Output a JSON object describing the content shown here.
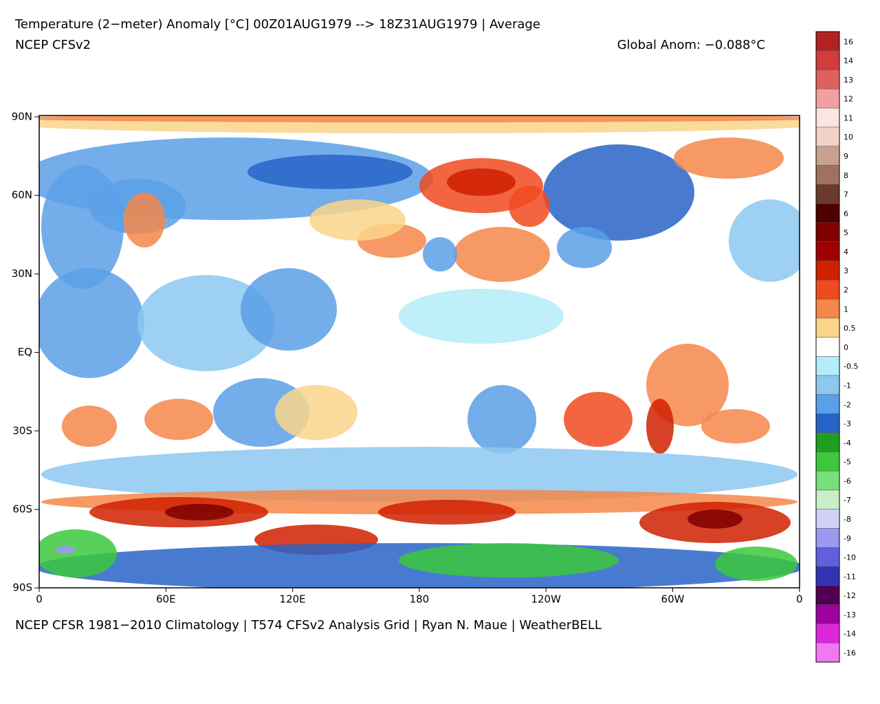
{
  "map": {
    "title": "Temperature (2−meter) Anomaly  [°C] 00Z01AUG1979 --> 18Z31AUG1979 | Average",
    "model": "NCEP CFSv2",
    "global_anomaly": "Global Anom: −0.088°C",
    "footer": "NCEP CFSR 1981−2010 Climatology | T574 CFSv2 Analysis Grid | Ryan N. Maue | WeatherBELL",
    "lat_labels": [
      "90N",
      "60N",
      "30N",
      "EQ",
      "30S",
      "60S",
      "90S"
    ],
    "lon_labels": [
      "0",
      "60E",
      "120E",
      "180",
      "120W",
      "60W",
      "0"
    ]
  },
  "colorbar": {
    "levels": [
      16,
      14,
      13,
      12,
      11,
      10,
      9,
      8,
      7,
      6,
      5,
      4,
      3,
      2,
      1,
      0.5,
      0,
      -0.5,
      -1,
      -2,
      -3,
      -4,
      -5,
      -6,
      -7,
      -8,
      -9,
      -10,
      -11,
      -12,
      -13,
      -14,
      -16
    ],
    "colors": [
      "#b22222",
      "#d23c3c",
      "#e06060",
      "#f0a0a0",
      "#fce4e0",
      "#f0d2c8",
      "#c8a090",
      "#a07060",
      "#6b3a2a",
      "#500000",
      "#800000",
      "#a00000",
      "#d02000",
      "#f04a1e",
      "#f5874a",
      "#fad58a",
      "#ffffff",
      "#b4ecf8",
      "#8cc8f0",
      "#5aa0e8",
      "#2864c8",
      "#1ea01e",
      "#3cc83c",
      "#78e078",
      "#c8f0c8",
      "#d2d2f8",
      "#9a9af0",
      "#6060dc",
      "#3232b4",
      "#500050",
      "#a000a0",
      "#dc28dc",
      "#f078f0"
    ]
  }
}
